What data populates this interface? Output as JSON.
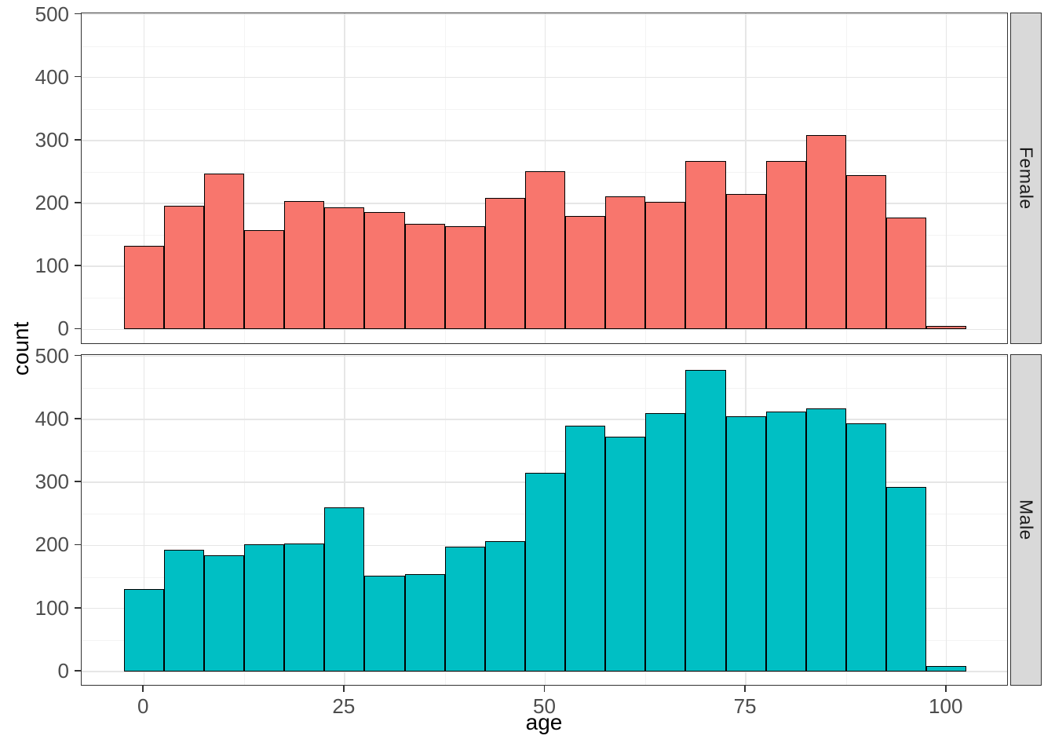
{
  "figure": {
    "description": "Faceted histogram of age by sex (ggplot2-style), two stacked panels sharing x axis",
    "background_color": "#FFFFFF"
  },
  "y_axis": {
    "title": "count",
    "tick_labels": [
      "0",
      "100",
      "200",
      "300",
      "400",
      "500"
    ],
    "tick_values": [
      0,
      100,
      200,
      300,
      400,
      500
    ],
    "minor_tick_values": [
      50,
      150,
      250,
      350,
      450
    ]
  },
  "x_axis": {
    "title": "age",
    "tick_labels": [
      "0",
      "25",
      "50",
      "75",
      "100"
    ],
    "tick_values": [
      0,
      25,
      50,
      75,
      100
    ],
    "minor_tick_values": [
      12.5,
      37.5,
      62.5,
      87.5
    ]
  },
  "facets": [
    {
      "label": "Female",
      "bar_color": "#F8766D"
    },
    {
      "label": "Male",
      "bar_color": "#00BFC4"
    }
  ],
  "style": {
    "bar_outline_color": "#000000",
    "panel_border_color": "#333333",
    "grid_major_color": "#E6E6E6",
    "grid_minor_color": "#F3F3F3",
    "strip_background_color": "#D9D9D9",
    "strip_text_color": "#1A1A1A",
    "tick_label_color": "#4D4D4D",
    "axis_title_color": "#000000"
  },
  "chart_data": {
    "type": "bar",
    "subtype": "histogram",
    "title": "",
    "xlabel": "age",
    "ylabel": "count",
    "bin_width": 5,
    "bin_centers": [
      0,
      5,
      10,
      15,
      20,
      25,
      30,
      35,
      40,
      45,
      50,
      55,
      60,
      65,
      70,
      75,
      80,
      85,
      90,
      95,
      100
    ],
    "series": [
      {
        "name": "Female",
        "color": "#F8766D",
        "values": [
          133,
          196,
          248,
          158,
          204,
          194,
          186,
          167,
          164,
          209,
          251,
          180,
          211,
          203,
          267,
          215,
          267,
          308,
          245,
          177,
          5
        ]
      },
      {
        "name": "Male",
        "color": "#00BFC4",
        "values": [
          131,
          193,
          185,
          202,
          203,
          260,
          152,
          155,
          198,
          207,
          315,
          390,
          373,
          410,
          478,
          405,
          412,
          417,
          393,
          293,
          9
        ]
      }
    ],
    "xlim": [
      -7.75,
      107.75
    ],
    "ylim": [
      -23.9,
      501.9
    ],
    "grid": true,
    "legend_position": "none",
    "facet_strip_position": "right"
  }
}
